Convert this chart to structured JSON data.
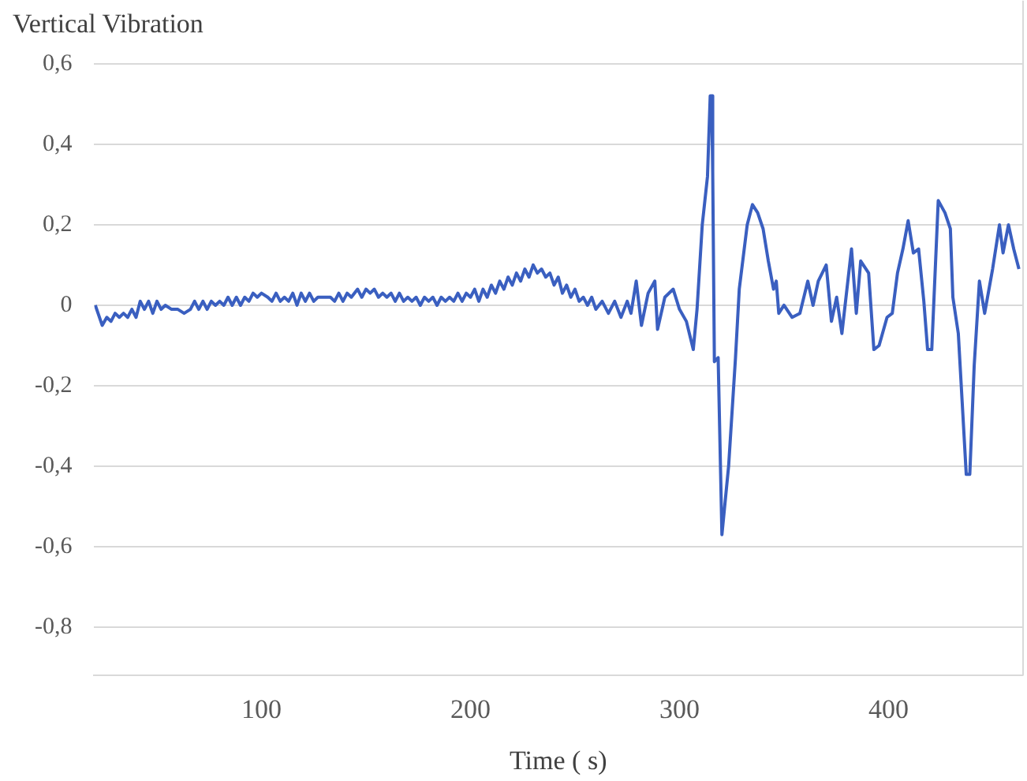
{
  "chart_data": {
    "type": "line",
    "title": "Vertical Vibration",
    "xlabel": "Time ( s)",
    "xlim": [
      20,
      464
    ],
    "xticks": [
      100,
      200,
      300,
      400
    ],
    "ylim": [
      -0.92,
      0.6
    ],
    "yticks": [
      {
        "value": 0.6,
        "label": "0,6"
      },
      {
        "value": 0.4,
        "label": "0,4"
      },
      {
        "value": 0.2,
        "label": "0,2"
      },
      0,
      {
        "value": -0.2,
        "label": "-0,2"
      },
      {
        "value": -0.4,
        "label": "-0,4"
      },
      {
        "value": -0.6,
        "label": "-0,6"
      },
      {
        "value": -0.8,
        "label": "-0,8"
      }
    ],
    "grid": "y",
    "legend": false,
    "marker": "none",
    "line_style": "solid",
    "series": [
      {
        "color": "#3a5fc0",
        "x": [
          20.5,
          23.8,
          26,
          28,
          30,
          32,
          34,
          36,
          38,
          40,
          42,
          44,
          46,
          48,
          50,
          52,
          54,
          57,
          60,
          63,
          66,
          68,
          70,
          72,
          74,
          76,
          78,
          80,
          82,
          84,
          86,
          88,
          90,
          92,
          94,
          96,
          98,
          100,
          103,
          105,
          107,
          109,
          111,
          113,
          115,
          117,
          119,
          121,
          123,
          125,
          127,
          130,
          133,
          135,
          137,
          139,
          141,
          143,
          146,
          148,
          150,
          152,
          154,
          156,
          158,
          160,
          162,
          164,
          166,
          168,
          170,
          172,
          174,
          176,
          178,
          180,
          182,
          184,
          186,
          188,
          190,
          192,
          194,
          196,
          198,
          200,
          202,
          204,
          206,
          208,
          210,
          212,
          214,
          216,
          218,
          220,
          222,
          224,
          226,
          228,
          230,
          232,
          234,
          236,
          238,
          240,
          242,
          244,
          246,
          248,
          250,
          252,
          254,
          256,
          258,
          260,
          263,
          266,
          269,
          272,
          275,
          276.8,
          279.3,
          281.8,
          285,
          288.2,
          289.5,
          293,
          297,
          300,
          303.3,
          306.6,
          308.4,
          310.9,
          313.4,
          314.7,
          315.4,
          315.9,
          316.7,
          318.5,
          320.3,
          323.5,
          326.8,
          328.6,
          332.4,
          334.9,
          337.4,
          340,
          342.5,
          345,
          346.3,
          347.5,
          350,
          353.9,
          357.6,
          361.4,
          363.9,
          366.4,
          370.2,
          372.7,
          375.2,
          377.7,
          382.3,
          384.6,
          386.7,
          390.5,
          393,
          395.5,
          399.3,
          401.8,
          404.3,
          406.9,
          409.4,
          411.9,
          414.4,
          416.9,
          418.7,
          420.7,
          423.8,
          427,
          429.6,
          430.8,
          433.4,
          437.2,
          438.9,
          441,
          443.5,
          446,
          449.8,
          453.1,
          454.8,
          457.4,
          459.9,
          462.4
        ],
        "values": [
          0,
          -0.05,
          -0.03,
          -0.04,
          -0.02,
          -0.03,
          -0.02,
          -0.03,
          -0.01,
          -0.03,
          0.01,
          -0.01,
          0.01,
          -0.02,
          0.01,
          -0.01,
          0,
          -0.01,
          -0.01,
          -0.02,
          -0.01,
          0.01,
          -0.01,
          0.01,
          -0.01,
          0.01,
          0,
          0.01,
          0,
          0.02,
          0,
          0.02,
          0,
          0.02,
          0.01,
          0.03,
          0.02,
          0.03,
          0.02,
          0.01,
          0.03,
          0.01,
          0.02,
          0.01,
          0.03,
          0,
          0.03,
          0.01,
          0.03,
          0.01,
          0.02,
          0.02,
          0.02,
          0.01,
          0.03,
          0.01,
          0.03,
          0.02,
          0.04,
          0.02,
          0.04,
          0.03,
          0.04,
          0.02,
          0.03,
          0.02,
          0.03,
          0.01,
          0.03,
          0.01,
          0.02,
          0.01,
          0.02,
          0,
          0.02,
          0.01,
          0.02,
          0,
          0.02,
          0.01,
          0.02,
          0.01,
          0.03,
          0.01,
          0.03,
          0.02,
          0.04,
          0.01,
          0.04,
          0.02,
          0.05,
          0.03,
          0.06,
          0.04,
          0.07,
          0.05,
          0.08,
          0.06,
          0.09,
          0.07,
          0.1,
          0.08,
          0.09,
          0.07,
          0.08,
          0.05,
          0.07,
          0.03,
          0.05,
          0.02,
          0.04,
          0.01,
          0.02,
          0,
          0.02,
          -0.01,
          0.01,
          -0.02,
          0.01,
          -0.03,
          0.01,
          -0.02,
          0.06,
          -0.05,
          0.03,
          0.06,
          -0.06,
          0.02,
          0.04,
          -0.01,
          -0.04,
          -0.11,
          -0.01,
          0.2,
          0.32,
          0.52,
          0.52,
          0.33,
          -0.14,
          -0.13,
          -0.57,
          -0.4,
          -0.13,
          0.04,
          0.2,
          0.25,
          0.23,
          0.19,
          0.11,
          0.04,
          0.06,
          -0.02,
          0,
          -0.03,
          -0.02,
          0.06,
          0,
          0.06,
          0.1,
          -0.04,
          0.02,
          -0.07,
          0.14,
          -0.02,
          0.11,
          0.08,
          -0.11,
          -0.1,
          -0.03,
          -0.02,
          0.08,
          0.14,
          0.21,
          0.13,
          0.14,
          0.01,
          -0.11,
          -0.11,
          0.26,
          0.23,
          0.19,
          0.02,
          -0.07,
          -0.42,
          -0.42,
          -0.15,
          0.06,
          -0.02,
          0.09,
          0.2,
          0.13,
          0.2,
          0.14,
          0.09
        ]
      }
    ]
  }
}
